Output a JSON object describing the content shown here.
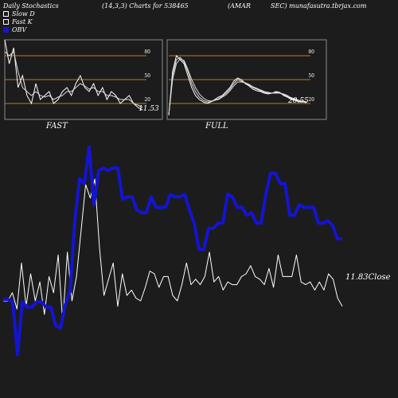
{
  "header": {
    "title": "Daily Stochastics",
    "params": "(14,3,3) Charts for 538465",
    "symbol": "(AMAR",
    "source": "SEC) munafasutra.tbrjax.com"
  },
  "legend": [
    {
      "label": "Slow  D",
      "color": "#ffffff"
    },
    {
      "label": "Fast K",
      "color": "#ffffff"
    },
    {
      "label": "OBV",
      "color": "#1414d0"
    }
  ],
  "chart_data": [
    {
      "type": "line",
      "panel": "FAST",
      "title": "FAST",
      "ylim": [
        0,
        100
      ],
      "y_ticks": [
        "80",
        "50",
        "20"
      ],
      "ref_lines": [
        80,
        50,
        20
      ],
      "last_value_label": "11.53",
      "series": [
        {
          "values": [
            100,
            70,
            90,
            40,
            55,
            30,
            20,
            45,
            25,
            30,
            35,
            20,
            25,
            35,
            40,
            30,
            45,
            55,
            40,
            35,
            45,
            30,
            40,
            25,
            35,
            30,
            20,
            25,
            30,
            20,
            15,
            12
          ]
        },
        {
          "values": [
            85,
            80,
            85,
            60,
            40,
            35,
            30,
            35,
            30,
            28,
            30,
            25,
            28,
            30,
            35,
            35,
            40,
            45,
            42,
            38,
            40,
            35,
            35,
            30,
            30,
            28,
            25,
            25,
            25,
            20,
            18,
            15
          ]
        }
      ]
    },
    {
      "type": "line",
      "panel": "FULL",
      "title": "FULL",
      "ylim": [
        0,
        100
      ],
      "y_ticks": [
        "80",
        "50",
        "20"
      ],
      "ref_lines": [
        80,
        50,
        20
      ],
      "last_value_label": "20.55",
      "series": [
        {
          "values": [
            5,
            60,
            80,
            75,
            70,
            55,
            40,
            30,
            25,
            22,
            20,
            22,
            25,
            28,
            30,
            35,
            40,
            48,
            52,
            50,
            45,
            42,
            38,
            36,
            35,
            33,
            32,
            33,
            35,
            34,
            30,
            28,
            25,
            24,
            22,
            23,
            22
          ]
        },
        {
          "values": [
            5,
            55,
            75,
            78,
            72,
            60,
            45,
            35,
            28,
            24,
            22,
            22,
            24,
            26,
            29,
            33,
            38,
            45,
            50,
            48,
            46,
            43,
            40,
            38,
            36,
            34,
            33,
            33,
            34,
            33,
            31,
            29,
            26,
            25,
            23,
            22,
            21
          ]
        },
        {
          "values": [
            5,
            50,
            70,
            76,
            74,
            63,
            50,
            40,
            32,
            27,
            24,
            23,
            24,
            25,
            28,
            31,
            36,
            42,
            47,
            47,
            46,
            44,
            41,
            39,
            37,
            35,
            34,
            33,
            33,
            33,
            32,
            30,
            27,
            26,
            24,
            23,
            22
          ]
        }
      ]
    },
    {
      "type": "line",
      "panel": "OBV",
      "title": "",
      "last_value_label": "11.83Close",
      "series": [
        {
          "name": "Close",
          "color": "#ffffff",
          "values": [
            8,
            8,
            11,
            5,
            22,
            6,
            18,
            8,
            15,
            3,
            17,
            11,
            25,
            0,
            26,
            8,
            17,
            34,
            51,
            46,
            53,
            28,
            10,
            16,
            22,
            6,
            18,
            10,
            12,
            9,
            8,
            13,
            19,
            18,
            13,
            17,
            17,
            10,
            8,
            14,
            22,
            14,
            16,
            14,
            17,
            26,
            15,
            17,
            12,
            15,
            14,
            14,
            17,
            18,
            21,
            17,
            16,
            14,
            20,
            13,
            25,
            17,
            17,
            17,
            25,
            15,
            14,
            15,
            12,
            15,
            12,
            18,
            16,
            9,
            6
          ]
        },
        {
          "name": "OBV",
          "color": "#1414d0",
          "values": [
            -73,
            -73,
            -74,
            -94,
            -74,
            -76,
            -76,
            -74,
            -74,
            -76,
            -76,
            -83,
            -84,
            -75,
            -70,
            -43,
            -27,
            -29,
            -15,
            -37,
            -24,
            -23,
            -24,
            -23,
            -23,
            -35,
            -34,
            -34,
            -39,
            -40,
            -40,
            -34,
            -38,
            -38,
            -38,
            -33,
            -34,
            -34,
            -33,
            -39,
            -44,
            -54,
            -54,
            -46,
            -46,
            -44,
            -44,
            -33,
            -34,
            -38,
            -38,
            -41,
            -40,
            -44,
            -44,
            -33,
            -25,
            -25,
            -29,
            -29,
            -41,
            -41,
            -37,
            -38,
            -38,
            -38,
            -44,
            -44,
            -43,
            -45,
            -50,
            -50
          ]
        }
      ]
    }
  ]
}
